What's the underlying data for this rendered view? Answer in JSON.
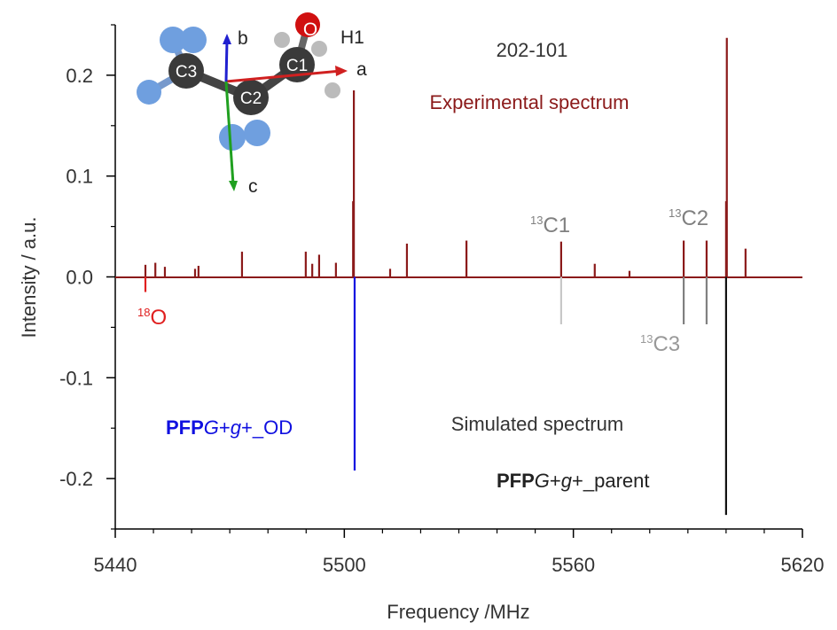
{
  "chart_data": {
    "type": "stick",
    "xlabel": "Frequency /MHz",
    "ylabel": "Intensity / a.u.",
    "xlim": [
      5440,
      5620
    ],
    "xticks": [
      5440,
      5500,
      5560,
      5620
    ],
    "xminorticks": [
      5450,
      5460,
      5470,
      5480,
      5490,
      5510,
      5520,
      5530,
      5540,
      5550,
      5570,
      5580,
      5590,
      5600,
      5610
    ],
    "ylim": [
      -0.25,
      0.25
    ],
    "yticks": [
      -0.2,
      -0.1,
      {
        "value": 0,
        "label": "0.0"
      },
      0.1,
      0.2
    ],
    "yminorticks": [
      -0.25,
      -0.15,
      -0.05,
      0.05,
      0.15,
      0.25
    ],
    "series": [
      {
        "color": "#8b1a1a",
        "x": [
          5447.9,
          5450.5,
          5453.0,
          5460.9,
          5461.8,
          5473.2,
          5489.9,
          5491.6,
          5493.4,
          5497.8,
          5502.3,
          5502.5,
          5512.0,
          5516.4,
          5532.0,
          5556.8,
          5565.6,
          5574.7,
          5588.9,
          5594.9,
          5600.0,
          5600.2,
          5605.1
        ],
        "values": [
          0.012,
          0.014,
          0.01,
          0.008,
          0.011,
          0.025,
          0.025,
          0.013,
          0.022,
          0.014,
          0.075,
          0.185,
          0.008,
          0.033,
          0.036,
          0.035,
          0.013,
          0.006,
          0.036,
          0.036,
          0.075,
          0.237,
          0.028
        ]
      },
      {
        "color": "#e02020",
        "x": [
          5447.9
        ],
        "values": [
          -0.015
        ]
      },
      {
        "color": "#1010e0",
        "x": [
          5502.7
        ],
        "values": [
          -0.192
        ]
      },
      {
        "color": "#c8c8c8",
        "x": [
          5556.8
        ],
        "values": [
          -0.047
        ]
      },
      {
        "color": "#808080",
        "x": [
          5588.9,
          5594.9
        ],
        "values": [
          -0.047,
          -0.047
        ]
      },
      {
        "color": "#111111",
        "x": [
          5600.0
        ],
        "values": [
          -0.236
        ]
      }
    ],
    "annotations": {
      "transition": "202-101",
      "experimental": "Experimental spectrum",
      "simulated": "Simulated spectrum",
      "o18": {
        "mass": "18",
        "atom": "O"
      },
      "c13_1": {
        "mass": "13",
        "atom": "C1"
      },
      "c13_2": {
        "mass": "13",
        "atom": "C2"
      },
      "c13_3": {
        "mass": "13",
        "atom": "C3"
      },
      "od": {
        "prefix": "PFP",
        "conf1": "G",
        "mid": "+",
        "conf2": "g",
        "suffix": "+_OD"
      },
      "parent": {
        "prefix": "PFP",
        "conf1": "G",
        "mid": "+",
        "conf2": "g",
        "suffix": "+_parent"
      }
    },
    "molecule": {
      "atoms": [
        "C3",
        "C2",
        "C1",
        "O",
        "H1"
      ],
      "axes": [
        "a",
        "b",
        "c"
      ]
    }
  }
}
